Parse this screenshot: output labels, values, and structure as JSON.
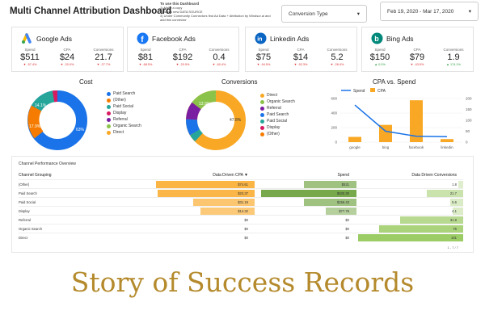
{
  "header": {
    "title": "Multi Channel Attribution Dashboard",
    "instructions": [
      "To use this Dashboard",
      "1) Make a copy",
      "2) Add a new DATA SOURCE",
      "3) Under Community Connectors find Ad Data + Attribution by Windsor.ai and add this connector"
    ],
    "conversion_type": "Conversion Type",
    "date_range": "Feb 19, 2020 - Mar 17, 2020"
  },
  "cards": [
    {
      "name": "Google Ads",
      "icon": "google-ads-icon",
      "spend_label": "Spend",
      "spend": "$511",
      "spend_chg": "-57.4%",
      "cpa_label": "CPA",
      "cpa": "$24",
      "cpa_chg": "-20.0%",
      "conv_label": "Conversions",
      "conv": "21.7",
      "conv_chg": "-27.7%"
    },
    {
      "name": "Facebook Ads",
      "icon": "facebook-icon",
      "spend_label": "Spend",
      "spend": "$81",
      "spend_chg": "-68.5%",
      "cpa_label": "CPA",
      "cpa": "$192",
      "cpa_chg": "-20.9%",
      "conv_label": "Conversions",
      "conv": "0.4",
      "conv_chg": "-60.4%"
    },
    {
      "name": "Linkedin Ads",
      "icon": "linkedin-icon",
      "spend_label": "Spend",
      "spend": "$75",
      "spend_chg": "-94.5%",
      "cpa_label": "CPA",
      "cpa": "$14",
      "cpa_chg": "-92.3%",
      "conv_label": "Conversions",
      "conv": "5.2",
      "conv_chg": "-28.4%"
    },
    {
      "name": "Bing Ads",
      "icon": "bing-icon",
      "spend_label": "Spend",
      "spend": "$150",
      "spend_chg": "0.0%",
      "cpa_label": "CPA",
      "cpa": "$79",
      "cpa_chg": "-43.5%",
      "conv_label": "Conversions",
      "conv": "1.9",
      "conv_chg": "174.1%"
    }
  ],
  "colors": {
    "paid_search": "#1a73e8",
    "other": "#f57c00",
    "paid_social": "#26a69a",
    "display": "#d81b60",
    "referral": "#7b1fa2",
    "organic_search": "#8bc34a",
    "direct": "#f9a825",
    "accent_orange": "#f9a825",
    "line_blue": "#1a73e8"
  },
  "cost": {
    "title": "Cost",
    "slice_labels": [
      "63%",
      "17.9%",
      "14.1%"
    ],
    "legend": [
      "Paid Search",
      "(Other)",
      "Paid Social",
      "Display",
      "Referral",
      "Organic Search",
      "Direct"
    ]
  },
  "conversions": {
    "title": "Conversions",
    "slice_labels": [
      "47.8%",
      "13.9%"
    ],
    "legend": [
      "Direct",
      "Organic Search",
      "Referral",
      "Paid Search",
      "Paid Social",
      "Display",
      "(Other)"
    ]
  },
  "chart_data": {
    "type": "bar",
    "title": "CPA vs. Spend",
    "categories": [
      "google",
      "bing",
      "facebook",
      "linkedin"
    ],
    "series": [
      {
        "name": "Spend",
        "type": "line",
        "axis": "left",
        "values": [
          511,
          150,
          81,
          75
        ]
      },
      {
        "name": "CPA",
        "type": "bar",
        "axis": "right",
        "values": [
          24,
          79,
          192,
          14
        ]
      }
    ],
    "left_ticks": [
      "0",
      "200",
      "400",
      "600"
    ],
    "right_ticks": [
      "0",
      "50",
      "100",
      "150",
      "200"
    ],
    "ylim_left": [
      0,
      600
    ],
    "ylim_right": [
      0,
      200
    ],
    "legend_position": "top"
  },
  "table": {
    "title": "Channel Performance Overview",
    "headers": [
      "Channel Grouping",
      "Data Driven CPA ▼",
      "Spend",
      "Data Driven Conversions"
    ],
    "rows": [
      [
        "(Other)",
        "$74.61",
        "$531",
        "1.8"
      ],
      [
        "Paid Search",
        "$23.37",
        "$530.30",
        "21.7"
      ],
      [
        "Paid Social",
        "$31.19",
        "$156.43",
        "5.6"
      ],
      [
        "Display",
        "$14.32",
        "$77.76",
        "4.1"
      ],
      [
        "Referral",
        "$0",
        "$0",
        "31.8"
      ],
      [
        "Organic Search",
        "$0",
        "$0",
        "76"
      ],
      [
        "Direct",
        "$0",
        "$0",
        "101"
      ]
    ],
    "pagination": "1 - 7 / 7"
  },
  "banner": "Story of Success Records"
}
